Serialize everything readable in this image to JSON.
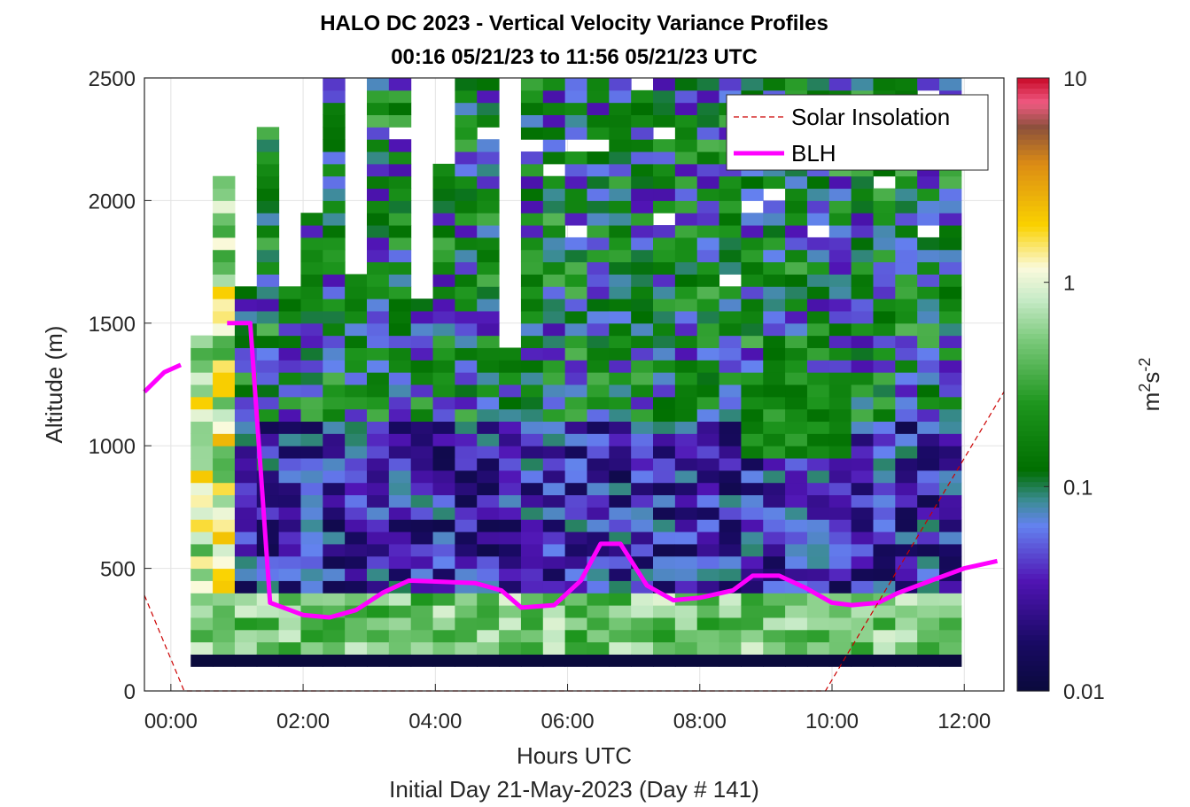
{
  "chart_data": {
    "type": "heatmap",
    "title": "HALO DC 2023 - Vertical Velocity Variance Profiles",
    "subtitle": "00:16 05/21/23 to 11:56 05/21/23  UTC",
    "xlabel": "Hours UTC",
    "ylabel": "Altitude (m)",
    "footer": "Initial Day 21-May-2023 (Day # 141)",
    "xlim": [
      -0.4,
      12.6
    ],
    "ylim": [
      0,
      2500
    ],
    "x_ticks": [
      {
        "value": 0,
        "label": "00:00"
      },
      {
        "value": 2,
        "label": "02:00"
      },
      {
        "value": 4,
        "label": "04:00"
      },
      {
        "value": 6,
        "label": "06:00"
      },
      {
        "value": 8,
        "label": "08:00"
      },
      {
        "value": 10,
        "label": "10:00"
      },
      {
        "value": 12,
        "label": "12:00"
      }
    ],
    "y_ticks": [
      0,
      500,
      1000,
      1500,
      2000,
      2500
    ],
    "grid": true,
    "legend": {
      "placement": "top-right",
      "entries": [
        {
          "label": "Solar Insolation",
          "style": "dashed",
          "color": "#cc0000"
        },
        {
          "label": "BLH",
          "style": "solid",
          "color": "#ff00ff"
        }
      ]
    },
    "colorbar": {
      "label_base": "m",
      "label_exp1": "2",
      "label_mid": "s",
      "label_exp2": "-2",
      "scale": "log",
      "range": [
        0.01,
        10
      ],
      "ticks": [
        {
          "value": 0.01,
          "label": "0.01"
        },
        {
          "value": 0.1,
          "label": "0.1"
        },
        {
          "value": 1,
          "label": "1"
        },
        {
          "value": 10,
          "label": "10"
        }
      ]
    },
    "series": [
      {
        "name": "BLH",
        "color": "#ff00ff",
        "x": [
          -0.4,
          -0.1,
          0.15,
          0.6,
          0.85,
          1.2,
          1.5,
          2.0,
          2.4,
          2.8,
          3.2,
          3.6,
          4.1,
          4.6,
          5.0,
          5.3,
          5.8,
          6.2,
          6.5,
          6.8,
          7.2,
          7.6,
          8.0,
          8.5,
          8.8,
          9.2,
          9.6,
          10.0,
          10.3,
          10.7,
          11.0,
          11.5,
          12.0,
          12.5
        ],
        "y": [
          1220,
          1300,
          1330,
          null,
          1500,
          1500,
          360,
          310,
          300,
          330,
          400,
          450,
          445,
          440,
          410,
          340,
          350,
          450,
          600,
          600,
          430,
          370,
          380,
          410,
          470,
          470,
          420,
          360,
          350,
          360,
          400,
          450,
          500,
          530
        ]
      },
      {
        "name": "Solar Insolation",
        "color": "#cc0000",
        "x": [
          -0.4,
          0.2,
          9.9,
          12.6
        ],
        "y": [
          390,
          0,
          0,
          1220
        ]
      }
    ],
    "heatmap": {
      "x_start": 0.3,
      "x_end": 11.9,
      "bin_width_hours": 0.333,
      "bin_height_m": 50,
      "z_unit": "m2s-2",
      "z_range": [
        0.01,
        10
      ],
      "columns": [
        {
          "top": 1420,
          "pattern": "high-variance column, 0.3–3 m2s-2"
        },
        {
          "top": 2100,
          "pattern": "0.3–2 m2s-2 throughout"
        },
        {
          "top": 1620,
          "pattern": "0.05–0.3 mid levels"
        },
        {
          "top": 2300,
          "pattern": "mixed 0.02–0.2 with gaps"
        },
        {
          "top": 2500,
          "pattern": "low 0.01–0.05 near 500–1000 m, 0.05–0.3 aloft"
        }
      ]
    }
  }
}
